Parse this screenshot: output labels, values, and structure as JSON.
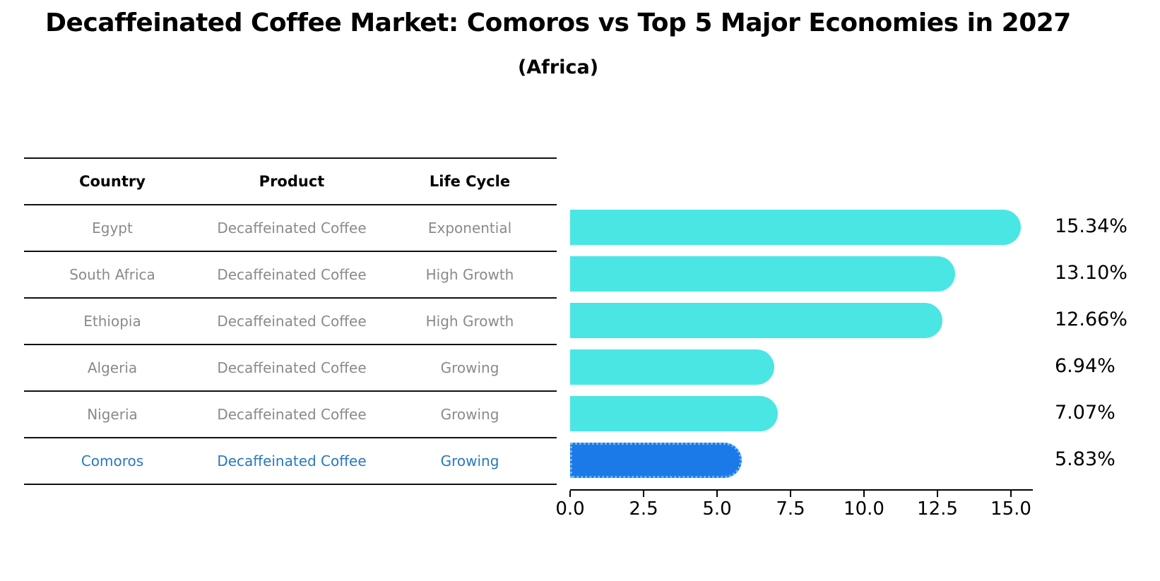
{
  "title": "Decaffeinated Coffee Market: Comoros vs Top 5 Major Economies in 2027",
  "subtitle": "(Africa)",
  "table": {
    "headers": [
      "Country",
      "Product",
      "Life Cycle"
    ],
    "rows": [
      {
        "country": "Egypt",
        "product": "Decaffeinated Coffee",
        "life_cycle": "Exponential",
        "highlighted": false
      },
      {
        "country": "South Africa",
        "product": "Decaffeinated Coffee",
        "life_cycle": "High Growth",
        "highlighted": false
      },
      {
        "country": "Ethiopia",
        "product": "Decaffeinated Coffee",
        "life_cycle": "High Growth",
        "highlighted": false
      },
      {
        "country": "Algeria",
        "product": "Decaffeinated Coffee",
        "life_cycle": "Growing",
        "highlighted": false
      },
      {
        "country": "Nigeria",
        "product": "Decaffeinated Coffee",
        "life_cycle": "Growing",
        "highlighted": false
      },
      {
        "country": "Comoros",
        "product": "Decaffeinated Coffee",
        "life_cycle": "Growing",
        "highlighted": true
      }
    ]
  },
  "chart_data": {
    "type": "bar",
    "orientation": "horizontal",
    "categories": [
      "Egypt",
      "South Africa",
      "Ethiopia",
      "Algeria",
      "Nigeria",
      "Comoros"
    ],
    "values": [
      15.34,
      13.1,
      12.66,
      6.94,
      7.07,
      5.83
    ],
    "value_labels": [
      "15.34%",
      "13.10%",
      "12.66%",
      "6.94%",
      "7.07%",
      "5.83%"
    ],
    "x_ticks": [
      0.0,
      2.5,
      5.0,
      7.5,
      10.0,
      12.5,
      15.0
    ],
    "x_tick_labels": [
      "0.0",
      "2.5",
      "5.0",
      "7.5",
      "10.0",
      "12.5",
      "15.0"
    ],
    "xlim": [
      0,
      15.75
    ],
    "grid": false,
    "legend": "none",
    "bar_color": "#4ae6e4",
    "highlight_bar_color": "#1b7ae8",
    "highlight_border_color": "#6ab5f5",
    "highlight_text_color": "#2878be",
    "highlight_index": 5
  }
}
